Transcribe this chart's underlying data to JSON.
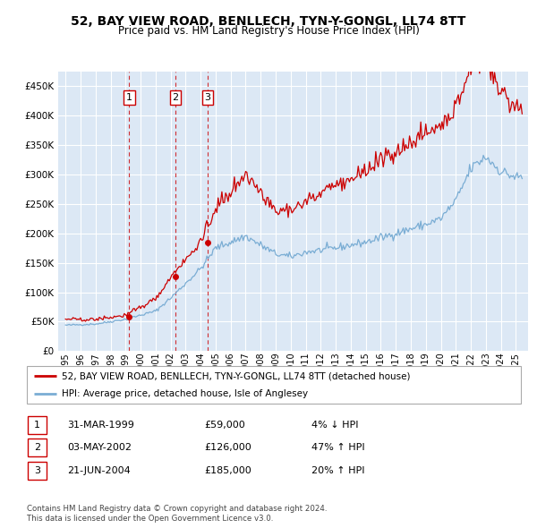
{
  "title": "52, BAY VIEW ROAD, BENLLECH, TYN-Y-GONGL, LL74 8TT",
  "subtitle": "Price paid vs. HM Land Registry's House Price Index (HPI)",
  "legend_line1": "52, BAY VIEW ROAD, BENLLECH, TYN-Y-GONGL, LL74 8TT (detached house)",
  "legend_line2": "HPI: Average price, detached house, Isle of Anglesey",
  "footer1": "Contains HM Land Registry data © Crown copyright and database right 2024.",
  "footer2": "This data is licensed under the Open Government Licence v3.0.",
  "transactions": [
    {
      "label": "1",
      "date": "31-MAR-1999",
      "price": 59000,
      "price_str": "£59,000",
      "pct": "4%",
      "dir": "↓"
    },
    {
      "label": "2",
      "date": "03-MAY-2002",
      "price": 126000,
      "price_str": "£126,000",
      "pct": "47%",
      "dir": "↑"
    },
    {
      "label": "3",
      "date": "21-JUN-2004",
      "price": 185000,
      "price_str": "£185,000",
      "pct": "20%",
      "dir": "↑"
    }
  ],
  "t1_x": 1999.25,
  "t2_x": 2002.33,
  "t3_x": 2004.46,
  "price_color": "#cc0000",
  "hpi_color": "#7aadd4",
  "bg_color": "#dce8f5",
  "grid_color": "#ffffff",
  "yticks": [
    0,
    50000,
    100000,
    150000,
    200000,
    250000,
    300000,
    350000,
    400000,
    450000
  ],
  "ylim": [
    0,
    475000
  ],
  "xlim_left": 1994.5,
  "xlim_right": 2025.8
}
